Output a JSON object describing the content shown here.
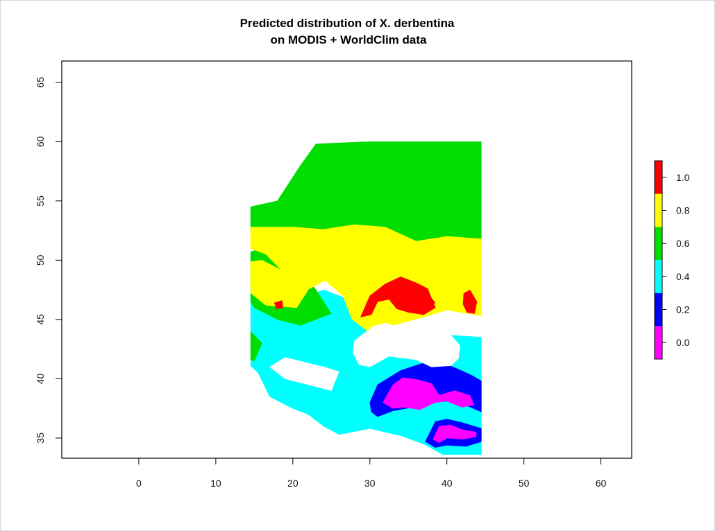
{
  "chart_data": {
    "type": "heatmap",
    "title_line1": "Predicted distribution of X. derbentina",
    "title_line2": "on MODIS + WorldClim data",
    "xlabel": "",
    "ylabel": "",
    "xlim": [
      -10,
      64
    ],
    "ylim": [
      33.3,
      66.8
    ],
    "x_ticks": [
      0,
      10,
      20,
      30,
      40,
      50,
      60
    ],
    "y_ticks": [
      35,
      40,
      45,
      50,
      55,
      60,
      65
    ],
    "x_tick_labels": [
      "0",
      "10",
      "20",
      "30",
      "40",
      "50",
      "60"
    ],
    "y_tick_labels": [
      "35",
      "40",
      "45",
      "50",
      "55",
      "60",
      "65"
    ],
    "grid": false,
    "legend": {
      "placement": "right",
      "breaks": [
        0.0,
        0.2,
        0.4,
        0.6,
        0.8,
        1.0
      ],
      "labels": [
        "0.0",
        "0.2",
        "0.4",
        "0.6",
        "0.8",
        "1.0"
      ],
      "bins": [
        {
          "range": [
            -0.1,
            0.1
          ],
          "color": "#ff00ff"
        },
        {
          "range": [
            0.1,
            0.3
          ],
          "color": "#0000ff"
        },
        {
          "range": [
            0.3,
            0.5
          ],
          "color": "#00ffff"
        },
        {
          "range": [
            0.5,
            0.7
          ],
          "color": "#00dd00"
        },
        {
          "range": [
            0.7,
            0.9
          ],
          "color": "#ffff00"
        },
        {
          "range": [
            0.9,
            1.1
          ],
          "color": "#ff0000"
        }
      ]
    },
    "raster_extent": {
      "lon": [
        14.5,
        44.5
      ],
      "lat": [
        33.6,
        60.0
      ]
    },
    "regions": [
      {
        "class": "cyan",
        "value": 0.4,
        "color": "#00ffff",
        "polygon": [
          [
            12.8,
            47.5
          ],
          [
            16,
            46.8
          ],
          [
            20,
            46.5
          ],
          [
            24,
            47.5
          ],
          [
            28,
            46.5
          ],
          [
            30,
            44.5
          ],
          [
            34,
            43.4
          ],
          [
            40,
            43.7
          ],
          [
            44.5,
            43.5
          ],
          [
            44.5,
            33.6
          ],
          [
            39.5,
            33.6
          ],
          [
            37,
            34.5
          ],
          [
            34,
            35.2
          ],
          [
            30,
            35.8
          ],
          [
            26,
            35.3
          ],
          [
            24,
            36
          ],
          [
            22,
            37
          ],
          [
            20,
            37.5
          ],
          [
            17,
            38.5
          ],
          [
            15.5,
            40.5
          ],
          [
            13,
            42
          ],
          [
            12.5,
            44.5
          ]
        ]
      },
      {
        "class": "green",
        "value": 0.6,
        "color": "#00dd00",
        "polygon": [
          [
            14.5,
            54.5
          ],
          [
            18,
            55
          ],
          [
            21,
            58
          ],
          [
            23,
            59.8
          ],
          [
            30,
            60
          ],
          [
            44.5,
            60
          ],
          [
            44.5,
            51.5
          ],
          [
            40,
            51.8
          ],
          [
            36,
            51.5
          ],
          [
            32,
            52.5
          ],
          [
            28,
            52.8
          ],
          [
            24,
            52.5
          ],
          [
            20,
            52.5
          ],
          [
            16.5,
            52
          ],
          [
            14.5,
            52.5
          ]
        ]
      },
      {
        "class": "green",
        "value": 0.6,
        "color": "#00dd00",
        "polygon": [
          [
            13.5,
            50.5
          ],
          [
            16,
            51
          ],
          [
            20,
            50
          ],
          [
            23,
            47.5
          ],
          [
            25,
            45.5
          ],
          [
            21,
            44.5
          ],
          [
            18,
            45
          ],
          [
            15,
            46
          ],
          [
            13,
            48
          ]
        ]
      },
      {
        "class": "green",
        "value": 0.6,
        "color": "#00dd00",
        "polygon": [
          [
            12.8,
            43.5
          ],
          [
            14.5,
            44
          ],
          [
            16,
            43
          ],
          [
            15,
            41.5
          ],
          [
            13,
            42
          ]
        ]
      },
      {
        "class": "green",
        "value": 0.6,
        "color": "#00dd00",
        "polygon": [
          [
            30,
            45.2
          ],
          [
            32,
            44.8
          ],
          [
            30.5,
            44.3
          ]
        ]
      },
      {
        "class": "yellow",
        "value": 0.8,
        "color": "#ffff00",
        "polygon": [
          [
            14.5,
            52.8
          ],
          [
            20,
            52.8
          ],
          [
            24,
            52.6
          ],
          [
            28,
            53
          ],
          [
            32,
            52.8
          ],
          [
            36,
            51.6
          ],
          [
            40,
            52
          ],
          [
            44.5,
            51.8
          ],
          [
            44.5,
            45.3
          ],
          [
            40,
            45.8
          ],
          [
            37,
            45.2
          ],
          [
            33.5,
            44.6
          ],
          [
            30.2,
            43.8
          ],
          [
            27.7,
            45
          ],
          [
            26.5,
            47
          ],
          [
            24.2,
            48.3
          ],
          [
            21.6,
            47.4
          ],
          [
            19.5,
            48.5
          ],
          [
            16.5,
            50.5
          ],
          [
            14.5,
            51
          ]
        ]
      },
      {
        "class": "yellow",
        "value": 0.8,
        "color": "#ffff00",
        "polygon": [
          [
            13.5,
            49.8
          ],
          [
            16,
            50
          ],
          [
            19,
            49
          ],
          [
            22,
            47.5
          ],
          [
            20.5,
            46
          ],
          [
            16.5,
            46.2
          ],
          [
            14,
            47.5
          ]
        ]
      },
      {
        "class": "red",
        "value": 1.0,
        "color": "#ff0000",
        "polygon": [
          [
            28.8,
            45.2
          ],
          [
            30,
            47
          ],
          [
            32,
            48
          ],
          [
            34,
            48.6
          ],
          [
            36,
            48.1
          ],
          [
            37.5,
            47.6
          ],
          [
            38.5,
            46
          ],
          [
            37,
            45.4
          ],
          [
            35,
            45.6
          ],
          [
            33.5,
            45.9
          ],
          [
            32.5,
            46.7
          ],
          [
            31,
            46.5
          ],
          [
            30.2,
            45.4
          ]
        ]
      },
      {
        "class": "red",
        "value": 1.0,
        "color": "#ff0000",
        "polygon": [
          [
            35.3,
            47.2
          ],
          [
            37.2,
            47.4
          ],
          [
            38.5,
            46.4
          ],
          [
            36.5,
            45.9
          ]
        ]
      },
      {
        "class": "red",
        "value": 1.0,
        "color": "#ff0000",
        "polygon": [
          [
            42.2,
            47.2
          ],
          [
            43,
            47.5
          ],
          [
            43.9,
            46.5
          ],
          [
            43.6,
            45.5
          ],
          [
            42.6,
            45.6
          ],
          [
            42.1,
            46.3
          ]
        ]
      },
      {
        "class": "red",
        "value": 1.0,
        "color": "#ff0000",
        "polygon": [
          [
            17.6,
            46.4
          ],
          [
            18.6,
            46.6
          ],
          [
            18.7,
            46
          ],
          [
            17.9,
            45.9
          ]
        ]
      },
      {
        "class": "blue",
        "value": 0.2,
        "color": "#0000ff",
        "polygon": [
          [
            30,
            38
          ],
          [
            31,
            39.5
          ],
          [
            34,
            40.7
          ],
          [
            37.8,
            41.5
          ],
          [
            40.8,
            41
          ],
          [
            43.2,
            40.3
          ],
          [
            44.5,
            39.8
          ],
          [
            44.5,
            37.2
          ],
          [
            42,
            37.9
          ],
          [
            39,
            38.5
          ],
          [
            36.5,
            37.7
          ],
          [
            33,
            37.3
          ],
          [
            31,
            36.8
          ],
          [
            30.2,
            37.2
          ]
        ]
      },
      {
        "class": "blue",
        "value": 0.2,
        "color": "#0000ff",
        "polygon": [
          [
            37.2,
            34.7
          ],
          [
            38.5,
            36.4
          ],
          [
            40,
            36.6
          ],
          [
            42,
            36.3
          ],
          [
            44.5,
            35.8
          ],
          [
            44.5,
            34.7
          ],
          [
            42.5,
            34.3
          ],
          [
            40,
            34.4
          ],
          [
            38.5,
            34.2
          ]
        ]
      },
      {
        "class": "magenta",
        "value": 0.0,
        "color": "#ff00ff",
        "polygon": [
          [
            31.7,
            38
          ],
          [
            33,
            39.5
          ],
          [
            34.3,
            40.1
          ],
          [
            36.3,
            39.9
          ],
          [
            38,
            39.6
          ],
          [
            39,
            38.6
          ],
          [
            41,
            39
          ],
          [
            43,
            38.6
          ],
          [
            43.5,
            37.8
          ],
          [
            42,
            37.6
          ],
          [
            40,
            38.1
          ],
          [
            38.5,
            38
          ],
          [
            36.5,
            37.4
          ],
          [
            34.5,
            37.6
          ],
          [
            33,
            37.5
          ]
        ]
      },
      {
        "class": "magenta",
        "value": 0.0,
        "color": "#ff00ff",
        "polygon": [
          [
            38.2,
            34.9
          ],
          [
            39,
            36
          ],
          [
            40.5,
            36.1
          ],
          [
            42,
            35.7
          ],
          [
            43.8,
            35.5
          ],
          [
            43.8,
            35.1
          ],
          [
            42,
            34.9
          ],
          [
            40,
            35
          ],
          [
            39,
            34.6
          ]
        ]
      },
      {
        "class": "white",
        "value": null,
        "color": "#ffffff",
        "polygon": [
          [
            27.8,
            42.2
          ],
          [
            28.6,
            41.2
          ],
          [
            30,
            41
          ],
          [
            32.5,
            41.9
          ],
          [
            36,
            41.6
          ],
          [
            38,
            41
          ],
          [
            40.5,
            41.1
          ],
          [
            41.5,
            41.7
          ],
          [
            41.7,
            42.8
          ],
          [
            40.5,
            43.7
          ],
          [
            39,
            44.4
          ],
          [
            37,
            44.7
          ],
          [
            35.2,
            44.6
          ],
          [
            33.5,
            44.4
          ],
          [
            32,
            44.7
          ],
          [
            30.4,
            44.4
          ],
          [
            29,
            43.7
          ],
          [
            28,
            43.2
          ]
        ]
      },
      {
        "class": "white",
        "value": null,
        "color": "#ffffff",
        "polygon": [
          [
            17,
            41
          ],
          [
            19,
            40
          ],
          [
            22,
            39.5
          ],
          [
            25,
            39
          ],
          [
            26,
            40.6
          ],
          [
            24,
            41
          ],
          [
            21.5,
            41.4
          ],
          [
            19,
            41.8
          ]
        ]
      },
      {
        "class": "white",
        "value": null,
        "color": "#ffffff",
        "polygon": [
          [
            14.5,
            59
          ],
          [
            16,
            58.8
          ],
          [
            17,
            60
          ],
          [
            14.5,
            60
          ]
        ]
      }
    ]
  }
}
